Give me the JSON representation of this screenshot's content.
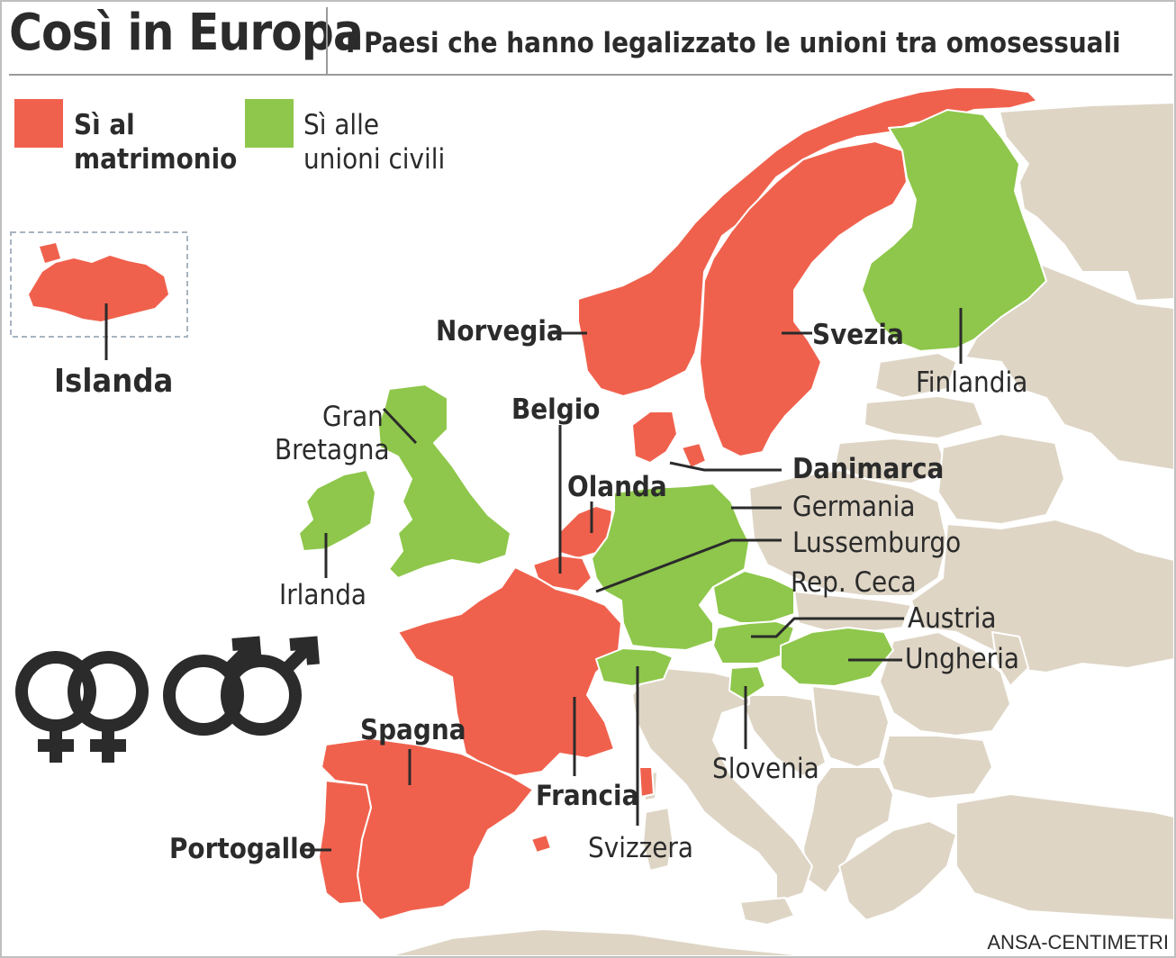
{
  "header": {
    "title": "Così in Europa",
    "subtitle": "I Paesi che hanno legalizzato le unioni tra omosessuali"
  },
  "legend": {
    "marriage": {
      "label_line1": "Sì al",
      "label_line2": "matrimonio",
      "color": "#f0614d"
    },
    "civil_union": {
      "label_line1": "Sì alle",
      "label_line2": "unioni civili",
      "color": "#8ec74b"
    }
  },
  "colors": {
    "marriage": "#f0614d",
    "civil_union": "#8ec74b",
    "other": "#ded5c5",
    "sea": "#ffffff",
    "leader": "#2b2b2b"
  },
  "countries": {
    "islanda": {
      "label": "Islanda",
      "status": "marriage"
    },
    "norvegia": {
      "label": "Norvegia",
      "status": "marriage"
    },
    "svezia": {
      "label": "Svezia",
      "status": "marriage"
    },
    "finlandia": {
      "label": "Finlandia",
      "status": "civil_union"
    },
    "gran_bretagna": {
      "label_line1": "Gran",
      "label_line2": "Bretagna",
      "status": "civil_union"
    },
    "irlanda": {
      "label": "Irlanda",
      "status": "civil_union"
    },
    "belgio": {
      "label": "Belgio",
      "status": "marriage"
    },
    "olanda": {
      "label": "Olanda",
      "status": "marriage"
    },
    "danimarca": {
      "label": "Danimarca",
      "status": "marriage"
    },
    "germania": {
      "label": "Germania",
      "status": "civil_union"
    },
    "lussemburgo": {
      "label": "Lussemburgo",
      "status": "civil_union"
    },
    "rep_ceca": {
      "label": "Rep. Ceca",
      "status": "civil_union"
    },
    "austria": {
      "label": "Austria",
      "status": "civil_union"
    },
    "ungheria": {
      "label": "Ungheria",
      "status": "civil_union"
    },
    "slovenia": {
      "label": "Slovenia",
      "status": "civil_union"
    },
    "spagna": {
      "label": "Spagna",
      "status": "marriage"
    },
    "francia": {
      "label": "Francia",
      "status": "marriage"
    },
    "svizzera": {
      "label": "Svizzera",
      "status": "civil_union"
    },
    "portogallo": {
      "label": "Portogallo",
      "status": "marriage"
    }
  },
  "icons": {
    "female_pair": "female-symbols-icon",
    "male_pair": "male-symbols-icon"
  },
  "credit": "ANSA-CENTIMETRI"
}
